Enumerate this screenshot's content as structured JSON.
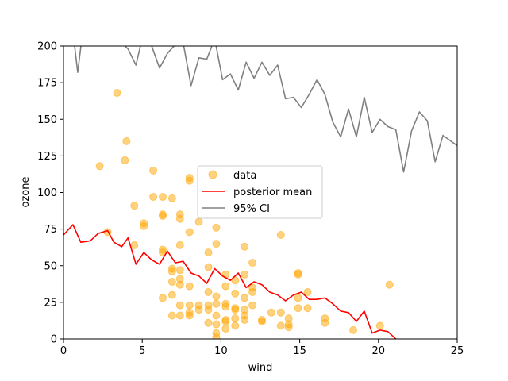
{
  "chart_data": {
    "type": "scatter",
    "xlabel": "wind",
    "ylabel": "ozone",
    "xlim": [
      0,
      25
    ],
    "ylim": [
      0,
      200
    ],
    "xticks": [
      0,
      5,
      10,
      15,
      20,
      25
    ],
    "yticks": [
      0,
      25,
      50,
      75,
      100,
      125,
      150,
      175,
      200
    ],
    "grid": false,
    "legend_position": "center",
    "series": [
      {
        "name": "data",
        "kind": "scatter",
        "color": "#FFA500",
        "points": [
          [
            2.3,
            118
          ],
          [
            3.4,
            168
          ],
          [
            3.9,
            122
          ],
          [
            4.0,
            135
          ],
          [
            2.8,
            73
          ],
          [
            4.5,
            91
          ],
          [
            4.5,
            64
          ],
          [
            5.1,
            77
          ],
          [
            5.1,
            79
          ],
          [
            5.7,
            115
          ],
          [
            5.7,
            97
          ],
          [
            6.3,
            97
          ],
          [
            6.3,
            85
          ],
          [
            6.3,
            84
          ],
          [
            6.3,
            61
          ],
          [
            6.3,
            59
          ],
          [
            6.3,
            28
          ],
          [
            6.9,
            96
          ],
          [
            6.9,
            48
          ],
          [
            6.9,
            46
          ],
          [
            6.9,
            39
          ],
          [
            6.9,
            30
          ],
          [
            6.9,
            16
          ],
          [
            7.4,
            85
          ],
          [
            7.4,
            82
          ],
          [
            7.4,
            64
          ],
          [
            7.4,
            47
          ],
          [
            7.4,
            41
          ],
          [
            7.4,
            37
          ],
          [
            7.4,
            23
          ],
          [
            7.4,
            16
          ],
          [
            8.0,
            110
          ],
          [
            8.0,
            108
          ],
          [
            8.0,
            73
          ],
          [
            8.0,
            36
          ],
          [
            8.0,
            23
          ],
          [
            8.0,
            18
          ],
          [
            8.0,
            16
          ],
          [
            8.6,
            80
          ],
          [
            8.6,
            23
          ],
          [
            8.6,
            20
          ],
          [
            9.2,
            59
          ],
          [
            9.2,
            49
          ],
          [
            9.2,
            32
          ],
          [
            9.2,
            23
          ],
          [
            9.2,
            20
          ],
          [
            9.2,
            11
          ],
          [
            9.7,
            76
          ],
          [
            9.7,
            65
          ],
          [
            9.7,
            29
          ],
          [
            9.7,
            24
          ],
          [
            9.7,
            16
          ],
          [
            9.7,
            10
          ],
          [
            9.7,
            4
          ],
          [
            9.7,
            1
          ],
          [
            10.3,
            44
          ],
          [
            10.3,
            36
          ],
          [
            10.3,
            24
          ],
          [
            10.3,
            22
          ],
          [
            10.3,
            13
          ],
          [
            10.3,
            12
          ],
          [
            10.3,
            7
          ],
          [
            10.9,
            40
          ],
          [
            10.9,
            31
          ],
          [
            10.9,
            21
          ],
          [
            10.9,
            20
          ],
          [
            10.9,
            14
          ],
          [
            10.9,
            9
          ],
          [
            11.5,
            63
          ],
          [
            11.5,
            44
          ],
          [
            11.5,
            28
          ],
          [
            11.5,
            20
          ],
          [
            11.5,
            16
          ],
          [
            11.5,
            13
          ],
          [
            12.0,
            52
          ],
          [
            12.0,
            35
          ],
          [
            12.0,
            32
          ],
          [
            12.0,
            23
          ],
          [
            12.6,
            13
          ],
          [
            12.6,
            12
          ],
          [
            13.2,
            18
          ],
          [
            13.8,
            71
          ],
          [
            13.8,
            18
          ],
          [
            13.8,
            9
          ],
          [
            14.3,
            14
          ],
          [
            14.3,
            10
          ],
          [
            14.3,
            8
          ],
          [
            14.9,
            45
          ],
          [
            14.9,
            44
          ],
          [
            14.9,
            28
          ],
          [
            14.9,
            21
          ],
          [
            15.5,
            32
          ],
          [
            15.5,
            21
          ],
          [
            16.6,
            14
          ],
          [
            16.6,
            11
          ],
          [
            18.4,
            6
          ],
          [
            20.1,
            9
          ],
          [
            20.7,
            37
          ]
        ]
      },
      {
        "name": "posterior mean",
        "kind": "line",
        "color": "#FF0000",
        "points": [
          [
            0.0,
            71
          ],
          [
            0.6,
            78
          ],
          [
            1.1,
            66
          ],
          [
            1.7,
            67
          ],
          [
            2.2,
            72
          ],
          [
            2.8,
            74
          ],
          [
            3.2,
            66
          ],
          [
            3.7,
            63
          ],
          [
            4.1,
            69
          ],
          [
            4.6,
            51
          ],
          [
            5.1,
            59
          ],
          [
            5.6,
            54
          ],
          [
            6.1,
            51
          ],
          [
            6.6,
            60
          ],
          [
            7.1,
            52
          ],
          [
            7.6,
            53
          ],
          [
            8.1,
            45
          ],
          [
            8.6,
            43
          ],
          [
            9.1,
            38
          ],
          [
            9.6,
            48
          ],
          [
            10.1,
            43
          ],
          [
            10.6,
            40
          ],
          [
            11.1,
            45
          ],
          [
            11.6,
            35
          ],
          [
            12.1,
            39
          ],
          [
            12.6,
            37
          ],
          [
            13.1,
            32
          ],
          [
            13.6,
            30
          ],
          [
            14.1,
            26
          ],
          [
            14.6,
            30
          ],
          [
            15.1,
            32
          ],
          [
            15.6,
            27
          ],
          [
            16.1,
            27
          ],
          [
            16.6,
            28
          ],
          [
            17.1,
            24
          ],
          [
            17.6,
            19
          ],
          [
            18.1,
            18
          ],
          [
            18.6,
            12
          ],
          [
            19.1,
            19
          ],
          [
            19.6,
            4
          ],
          [
            20.1,
            6
          ],
          [
            20.6,
            5
          ],
          [
            21.1,
            0
          ],
          [
            21.6,
            -2
          ],
          [
            22.1,
            -1
          ],
          [
            22.6,
            -3
          ],
          [
            23.1,
            -2
          ],
          [
            23.6,
            -4
          ],
          [
            24.1,
            -5
          ],
          [
            24.6,
            -6
          ],
          [
            25.0,
            -7
          ]
        ]
      },
      {
        "name": "95% CI",
        "kind": "line",
        "color": "#808080",
        "points": [
          [
            0.0,
            208
          ],
          [
            0.6,
            210
          ],
          [
            0.9,
            182
          ],
          [
            1.2,
            208
          ],
          [
            1.7,
            215
          ],
          [
            2.2,
            212
          ],
          [
            2.8,
            220
          ],
          [
            3.2,
            210
          ],
          [
            3.7,
            202
          ],
          [
            4.1,
            198
          ],
          [
            4.6,
            187
          ],
          [
            5.1,
            210
          ],
          [
            5.6,
            200
          ],
          [
            6.1,
            185
          ],
          [
            6.6,
            195
          ],
          [
            7.1,
            201
          ],
          [
            7.6,
            202
          ],
          [
            8.1,
            173
          ],
          [
            8.6,
            192
          ],
          [
            9.1,
            191
          ],
          [
            9.6,
            205
          ],
          [
            10.1,
            177
          ],
          [
            10.6,
            181
          ],
          [
            11.1,
            170
          ],
          [
            11.6,
            189
          ],
          [
            12.1,
            178
          ],
          [
            12.6,
            189
          ],
          [
            13.1,
            180
          ],
          [
            13.6,
            187
          ],
          [
            14.1,
            164
          ],
          [
            14.6,
            165
          ],
          [
            15.1,
            158
          ],
          [
            15.6,
            167
          ],
          [
            16.1,
            177
          ],
          [
            16.6,
            167
          ],
          [
            17.1,
            148
          ],
          [
            17.6,
            138
          ],
          [
            18.1,
            157
          ],
          [
            18.6,
            138
          ],
          [
            19.1,
            165
          ],
          [
            19.6,
            141
          ],
          [
            20.1,
            150
          ],
          [
            20.6,
            145
          ],
          [
            21.1,
            143
          ],
          [
            21.6,
            114
          ],
          [
            22.1,
            142
          ],
          [
            22.6,
            155
          ],
          [
            23.1,
            149
          ],
          [
            23.6,
            121
          ],
          [
            24.1,
            139
          ],
          [
            24.6,
            135
          ],
          [
            25.0,
            132
          ]
        ]
      }
    ]
  }
}
